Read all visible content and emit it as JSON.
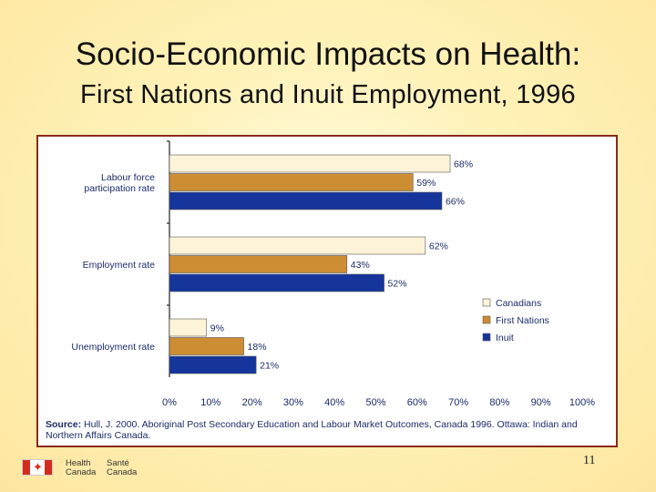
{
  "slide": {
    "title": "Socio-Economic Impacts on Health:",
    "subtitle": "First Nations and Inuit Employment, 1996",
    "page_number": "11",
    "logo": {
      "en_1": "Health",
      "en_2": "Canada",
      "fr_1": "Santé",
      "fr_2": "Canada",
      "flag_icon": "canada-flag-icon"
    }
  },
  "source": {
    "label": "Source:",
    "text": "Hull, J. 2000. Aboriginal Post Secondary Education and Labour Market Outcomes, Canada 1996. Ottawa: Indian and Northern Affairs Canada."
  },
  "chart_data": {
    "type": "bar",
    "orientation": "horizontal",
    "categories": [
      "Labour force participation rate",
      "Employment rate",
      "Unemployment rate"
    ],
    "category_lines": [
      [
        "Labour force",
        "participation rate"
      ],
      [
        "Employment rate"
      ],
      [
        "Unemployment rate"
      ]
    ],
    "series": [
      {
        "name": "Canadians",
        "values": [
          68,
          62,
          9
        ],
        "labels": [
          "68%",
          "62%",
          "9%"
        ],
        "color": "#fdf3d8"
      },
      {
        "name": "First Nations",
        "values": [
          59,
          43,
          18
        ],
        "labels": [
          "59%",
          "43%",
          "18%"
        ],
        "color": "#cc8d33"
      },
      {
        "name": "Inuit",
        "values": [
          66,
          52,
          21
        ],
        "labels": [
          "66%",
          "52%",
          "21%"
        ],
        "color": "#15349c"
      }
    ],
    "xlim": [
      0,
      100
    ],
    "xticks": [
      "0%",
      "10%",
      "20%",
      "30%",
      "40%",
      "50%",
      "60%",
      "70%",
      "80%",
      "90%",
      "100%"
    ],
    "legend_position": "right",
    "grid": false
  }
}
